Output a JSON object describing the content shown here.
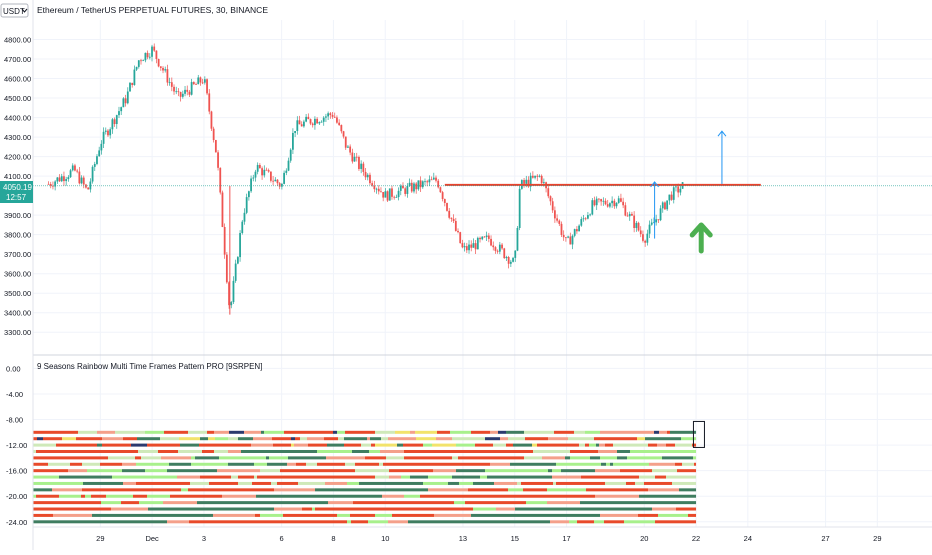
{
  "symbol": {
    "currency_badge": "USDT",
    "title": "Ethereum / TetherUS PERPETUAL FUTURES, 30, BINANCE"
  },
  "price_badge": {
    "price": "4050.19",
    "countdown": "12:57"
  },
  "indicator": {
    "title": "9 Seasons Rainbow Multi Time Frames Pattern PRO [9SRPEN]"
  },
  "colors": {
    "up": "#26a69a",
    "down": "#ef5350",
    "level_line": "#e8432e",
    "arrow": "#2196f3",
    "green_arrow": "#4caf50",
    "badge": "#26a69a",
    "rainbow": [
      "#e84a2a",
      "#f4a08a",
      "#3f7d60",
      "#cfe9b9",
      "#a8f08c",
      "#2b3a6e",
      "#f2e36b"
    ]
  },
  "chart_data": [
    {
      "type": "candlestick",
      "title": "Ethereum / TetherUS PERPETUAL FUTURES, 30, BINANCE",
      "ylim": [
        3250,
        4900
      ],
      "y_ticks": [
        "4800.00",
        "4700.00",
        "4600.00",
        "4500.00",
        "4400.00",
        "4300.00",
        "4200.00",
        "4100.00",
        "3900.00",
        "3800.00",
        "3700.00",
        "3600.00",
        "3500.00",
        "3400.00",
        "3300.00"
      ],
      "x_ticks": [
        "29",
        "Dec",
        "3",
        "6",
        "8",
        "10",
        "13",
        "15",
        "17",
        "20",
        "22",
        "24",
        "27",
        "29"
      ],
      "last_price": 4050.19,
      "horizontal_level": 4055,
      "price_path_approx": [
        {
          "x": "27",
          "y": 4060
        },
        {
          "x": "28",
          "y": 4130
        },
        {
          "x": "28.5",
          "y": 4020
        },
        {
          "x": "29",
          "y": 4270
        },
        {
          "x": "30",
          "y": 4500
        },
        {
          "x": "30.5",
          "y": 4700
        },
        {
          "x": "Dec",
          "y": 4750
        },
        {
          "x": "2",
          "y": 4500
        },
        {
          "x": "3",
          "y": 4600
        },
        {
          "x": "3.5",
          "y": 4200
        },
        {
          "x": "4",
          "y": 3400
        },
        {
          "x": "4.5",
          "y": 3900
        },
        {
          "x": "5",
          "y": 4150
        },
        {
          "x": "6",
          "y": 4050
        },
        {
          "x": "6.5",
          "y": 4350
        },
        {
          "x": "7",
          "y": 4380
        },
        {
          "x": "8",
          "y": 4420
        },
        {
          "x": "8.5",
          "y": 4250
        },
        {
          "x": "9",
          "y": 4150
        },
        {
          "x": "10",
          "y": 4000
        },
        {
          "x": "11",
          "y": 4040
        },
        {
          "x": "12",
          "y": 4080
        },
        {
          "x": "13",
          "y": 3720
        },
        {
          "x": "14",
          "y": 3780
        },
        {
          "x": "15",
          "y": 3650
        },
        {
          "x": "15.2",
          "y": 4050
        },
        {
          "x": "16",
          "y": 4100
        },
        {
          "x": "17",
          "y": 3750
        },
        {
          "x": "18",
          "y": 3950
        },
        {
          "x": "19",
          "y": 3980
        },
        {
          "x": "20",
          "y": 3780
        },
        {
          "x": "21",
          "y": 4000
        },
        {
          "x": "21.5",
          "y": 4050
        }
      ]
    },
    {
      "type": "heatmap",
      "title": "9 Seasons Rainbow Multi Time Frames Pattern PRO [9SRPEN]",
      "ylim": [
        -24.5,
        1
      ],
      "y_ticks": [
        "0.00",
        "-4.00",
        "-8.00",
        "-12.00",
        "-16.00",
        "-20.00",
        "-24.00"
      ],
      "rows": 15,
      "row_levels": [
        -10,
        -11,
        -12,
        -13,
        -14,
        -15,
        -16,
        -17,
        -18,
        -19,
        -20,
        -21,
        -22,
        -23,
        -24
      ]
    }
  ]
}
